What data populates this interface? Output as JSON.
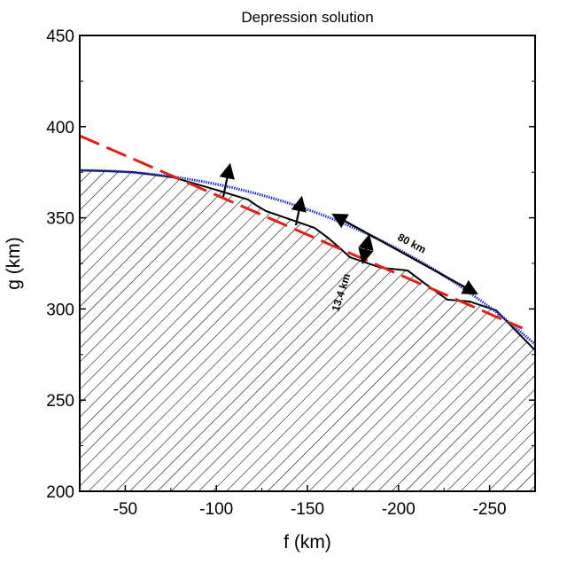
{
  "chart_data": {
    "type": "line",
    "title": "Depression solution",
    "xlabel": "f (km)",
    "ylabel": "g (km)",
    "xlim": [
      -25,
      -275
    ],
    "ylim": [
      200,
      450
    ],
    "x_reversed": true,
    "xticks": [
      -50,
      -100,
      -150,
      -200,
      -250
    ],
    "yticks": [
      200,
      250,
      300,
      350,
      400,
      450
    ],
    "grid": false,
    "series": [
      {
        "style": "black solid/dotted surface with hatched fill below",
        "color": "#000000",
        "x": [
          -25,
          -54.2,
          -76.1,
          -98,
          -117.4,
          -122.3,
          -127.2,
          -153.9,
          -161.2,
          -168.5,
          -173.3,
          -190.4,
          -205,
          -214.7,
          -226.8,
          -239,
          -253.6,
          -275
        ],
        "y": [
          376.1,
          375.1,
          372.2,
          365.9,
          360,
          356.6,
          353.7,
          344.5,
          339.1,
          332.8,
          328.4,
          322.6,
          321.1,
          313.8,
          305.1,
          304.1,
          299.2,
          277.3
        ]
      },
      {
        "style": "blue dotted circular arc",
        "color": "#1f2fd0",
        "center": [
          -25,
          1
        ],
        "radius": 375
      },
      {
        "style": "red dashed line",
        "color": "#e0201b",
        "x": [
          -25,
          -268
        ],
        "y": [
          395,
          289.5
        ]
      }
    ],
    "annotations": [
      {
        "text": "80 km"
      },
      {
        "text": "13.4 km"
      }
    ]
  }
}
